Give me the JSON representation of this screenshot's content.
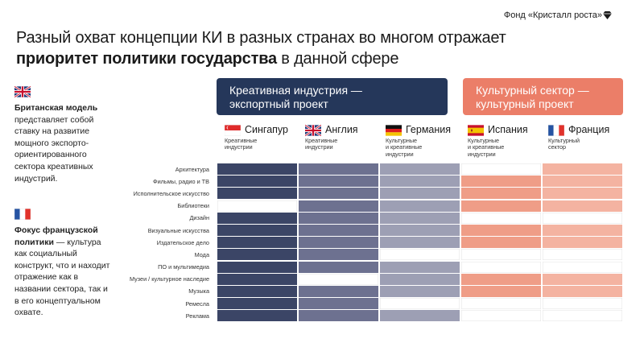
{
  "brand": {
    "name": "Фонд «Кристалл роста»",
    "icon": "gem-icon"
  },
  "title": {
    "line1": "Разный охват концепции КИ в разных странах во многом отражает",
    "line2_bold": "приоритет политики государства",
    "line2_rest": " в данной сфере"
  },
  "notes": {
    "uk": {
      "bold": "Британская модель",
      "text": " представляет собой ставку на развитие мощного экспорто-ориентированного сектора креативных индустрий."
    },
    "fr": {
      "bold": "Фокус французской политики",
      "text": " — культура как социальный конструкт, что и находит отражение как в названии сектора, так и в его концептуальном охвате."
    }
  },
  "banners": {
    "creative": {
      "line1": "Креативная индустрия —",
      "line2": "экспортный проект"
    },
    "cultural": {
      "line1": "Культурный сектор —",
      "line2": "культурный проект"
    }
  },
  "countries": [
    {
      "name": "Сингапур",
      "desc1": "Креативные",
      "desc2": "индустрии",
      "desc3": "",
      "flag": "singapore-flag"
    },
    {
      "name": "Англия",
      "desc1": "Креативные",
      "desc2": "индустрии",
      "desc3": "",
      "flag": "uk-flag"
    },
    {
      "name": "Германия",
      "desc1": "Культурные",
      "desc2": "и креативные",
      "desc3": "индустрии",
      "flag": "germany-flag"
    },
    {
      "name": "Испания",
      "desc1": "Культурные",
      "desc2": "и креативные",
      "desc3": "индустрии",
      "flag": "spain-flag"
    },
    {
      "name": "Франция",
      "desc1": "Культурный",
      "desc2": "сектор",
      "desc3": "",
      "flag": "france-flag"
    }
  ],
  "rows": [
    "Архитектура",
    "Фильмы, радио и ТВ",
    "Исполнительское искусство",
    "Библиотеки",
    "Дизайн",
    "Визуальные искусства",
    "Издательское дело",
    "Мода",
    "ПО и мультимедиа",
    "Музеи / культурное наследие",
    "Музыка",
    "Ремесла",
    "Реклама"
  ],
  "matrix": [
    [
      1,
      1,
      1,
      0,
      1
    ],
    [
      1,
      1,
      1,
      1,
      1
    ],
    [
      1,
      1,
      1,
      1,
      1
    ],
    [
      0,
      1,
      1,
      1,
      1
    ],
    [
      1,
      1,
      1,
      0,
      0
    ],
    [
      1,
      1,
      1,
      1,
      1
    ],
    [
      1,
      1,
      1,
      1,
      1
    ],
    [
      1,
      1,
      0,
      0,
      0
    ],
    [
      1,
      1,
      1,
      0,
      0
    ],
    [
      1,
      0,
      1,
      1,
      1
    ],
    [
      1,
      1,
      1,
      1,
      1
    ],
    [
      1,
      1,
      0,
      0,
      0
    ],
    [
      1,
      1,
      1,
      0,
      0
    ]
  ],
  "colors": {
    "col1": "#3b4566",
    "col2": "#6d7190",
    "col3": "#9d9fb4",
    "col4": "#ef9d87",
    "col5": "#f4b3a1",
    "creative_banner": "#25375a",
    "cultural_banner": "#eb7e68"
  }
}
